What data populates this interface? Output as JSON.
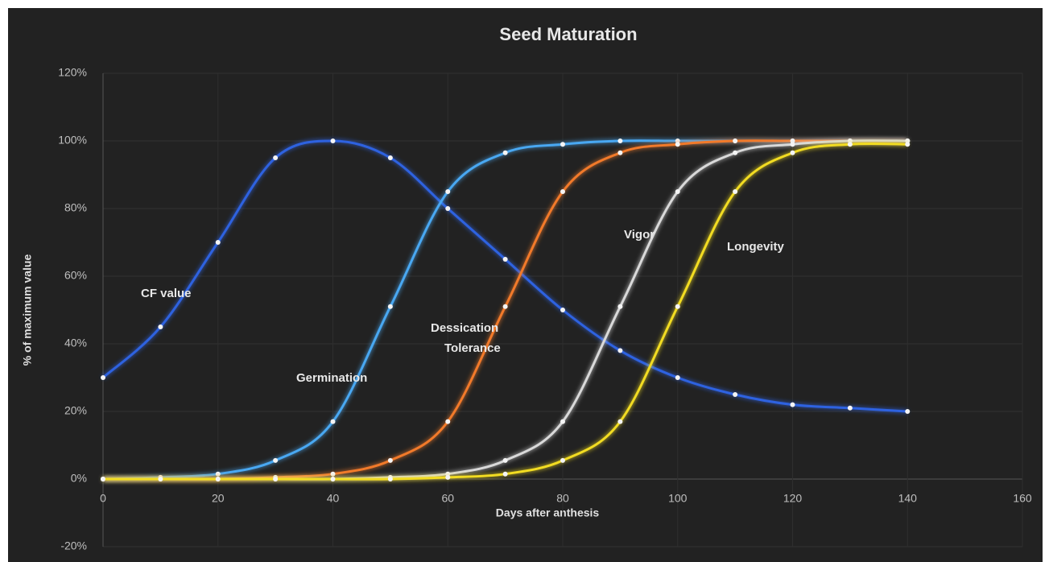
{
  "chart_data": {
    "type": "line",
    "title": "Seed Maturation",
    "xlabel": "Days after anthesis",
    "ylabel": "% of maximum value",
    "x": [
      0,
      10,
      20,
      30,
      40,
      50,
      60,
      70,
      80,
      90,
      100,
      110,
      120,
      130,
      140
    ],
    "series": [
      {
        "name": "CF value",
        "color": "#2f62e0",
        "values": [
          30,
          45,
          70,
          95,
          100,
          95,
          80,
          65,
          50,
          38,
          30,
          25,
          22,
          21,
          20
        ]
      },
      {
        "name": "Germination",
        "color": "#4aa8f2",
        "values": [
          0,
          0.5,
          1.5,
          5.5,
          17,
          51,
          85,
          96.5,
          99,
          100,
          100,
          100,
          100,
          100,
          100
        ]
      },
      {
        "name": "Dessication Tolerance",
        "color": "#f27a2a",
        "values": [
          0,
          0,
          0,
          0.5,
          1.5,
          5.5,
          17,
          51,
          85,
          96.5,
          99,
          100,
          100,
          100,
          100
        ]
      },
      {
        "name": "Vigor",
        "color": "#d9d9d9",
        "values": [
          0,
          0,
          0,
          0,
          0,
          0.5,
          1.5,
          5.5,
          17,
          51,
          85,
          96.5,
          99,
          100,
          100
        ]
      },
      {
        "name": "Longevity",
        "color": "#f2dc22",
        "values": [
          0,
          0,
          0,
          0,
          0,
          0,
          0.5,
          1.5,
          5.5,
          17,
          51,
          85,
          96.5,
          99,
          99
        ]
      }
    ],
    "annotations": [
      "CF value",
      "Germination",
      "Dessication",
      "Tolerance",
      "Vigor",
      "Longevity"
    ],
    "xlim": [
      0,
      160
    ],
    "xticks": [
      0,
      20,
      40,
      60,
      80,
      100,
      120,
      140,
      160
    ],
    "ylim": [
      -20,
      120
    ],
    "yticks": [
      {
        "value": -20,
        "label": "-20%"
      },
      {
        "value": 0,
        "label": "0%"
      },
      {
        "value": 20,
        "label": "20%"
      },
      {
        "value": 40,
        "label": "40%"
      },
      {
        "value": 60,
        "label": "60%"
      },
      {
        "value": 80,
        "label": "80%"
      },
      {
        "value": 100,
        "label": "100%"
      },
      {
        "value": 120,
        "label": "120%"
      }
    ],
    "grid": true
  }
}
